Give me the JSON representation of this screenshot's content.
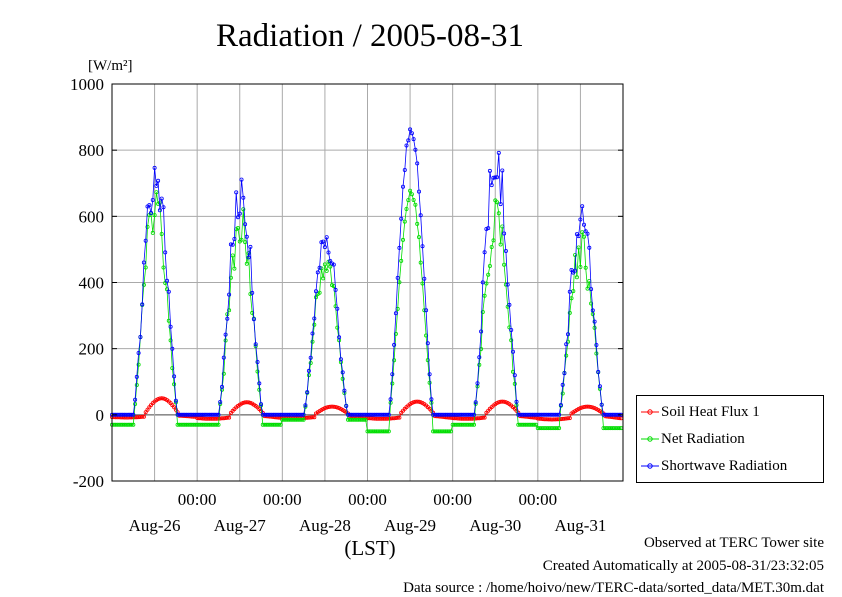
{
  "chart_data": {
    "type": "line",
    "title": "Radiation / 2005-08-31",
    "yunit": "[W/m²]",
    "ylim": [
      -200,
      1000
    ],
    "yticks": [
      -200,
      0,
      200,
      400,
      600,
      800,
      1000
    ],
    "xlabel": "(LST)",
    "xlim": [
      0,
      6
    ],
    "time_tick_labels": [
      "00:00",
      "00:00",
      "00:00",
      "00:00",
      "00:00"
    ],
    "day_labels": [
      "Aug-26",
      "Aug-27",
      "Aug-28",
      "Aug-29",
      "Aug-30",
      "Aug-31"
    ],
    "grid": true,
    "legend_position": "right",
    "series": [
      {
        "name": "Soil Heat Flux 1",
        "color": "#ff0000",
        "peaks": [
          50,
          38,
          25,
          40,
          40,
          25
        ],
        "night": [
          -8,
          -12,
          -10,
          -12,
          -12,
          -14
        ]
      },
      {
        "name": "Net Radiation",
        "color": "#00dd00",
        "peaks": [
          720,
          640,
          520,
          690,
          660,
          560
        ],
        "night": [
          -30,
          -30,
          -15,
          -50,
          -30,
          -40
        ]
      },
      {
        "name": "Shortwave Radiation",
        "color": "#0000ff",
        "peaks": [
          835,
          745,
          590,
          885,
          855,
          640
        ],
        "night": [
          0,
          0,
          0,
          0,
          0,
          0
        ]
      }
    ]
  },
  "footer": {
    "line1": "Observed at TERC Tower site",
    "line2": "Created Automatically at 2005-08-31/23:32:05",
    "line3": "Data source : /home/hoivo/new/TERC-data/sorted_data/MET.30m.dat"
  }
}
